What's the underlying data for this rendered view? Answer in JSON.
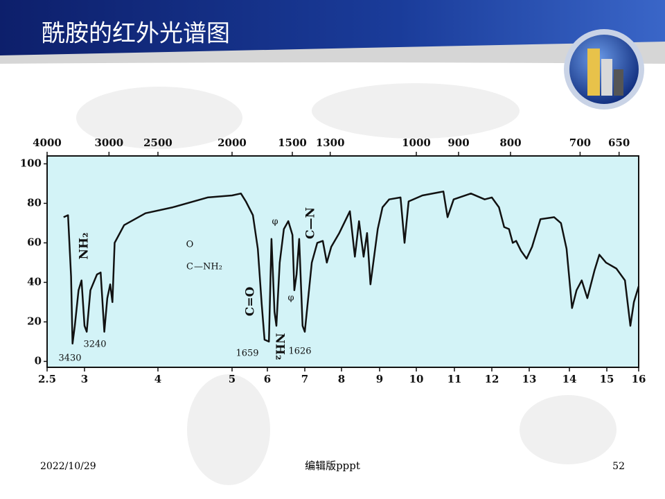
{
  "slide": {
    "title": "酰胺的红外光谱图",
    "date": "2022/10/29",
    "footer": "编辑版pppt",
    "page": "52"
  },
  "chart_data": {
    "type": "line",
    "x": [
      2.72,
      2.78,
      2.82,
      2.84,
      2.87,
      2.92,
      2.96,
      3.0,
      3.03,
      3.08,
      3.17,
      3.22,
      3.27,
      3.31,
      3.35,
      3.38,
      3.41,
      3.54,
      3.83,
      4.2,
      4.67,
      5.0,
      5.25,
      5.39,
      5.59,
      5.73,
      5.84,
      5.92,
      6.04,
      6.11,
      6.19,
      6.24,
      6.33,
      6.44,
      6.56,
      6.67,
      6.72,
      6.78,
      6.85,
      6.94,
      7.0,
      7.19,
      7.34,
      7.49,
      7.6,
      7.72,
      7.94,
      8.22,
      8.35,
      8.46,
      8.58,
      8.67,
      8.76,
      8.95,
      9.08,
      9.26,
      9.57,
      9.68,
      9.79,
      10.16,
      10.71,
      10.82,
      10.98,
      11.44,
      11.81,
      12.0,
      12.19,
      12.33,
      12.46,
      12.56,
      12.65,
      12.78,
      12.93,
      13.07,
      13.28,
      13.62,
      13.79,
      13.93,
      14.07,
      14.19,
      14.33,
      14.48,
      14.67,
      14.8,
      14.98,
      15.3,
      15.57,
      15.74,
      15.85,
      16.0
    ],
    "values": [
      73,
      74,
      43,
      9,
      18,
      36,
      41,
      18,
      15,
      36,
      44,
      45,
      15,
      32,
      39,
      30,
      60,
      69,
      75,
      78,
      83,
      84,
      85,
      81,
      74,
      57,
      29,
      11,
      10,
      62,
      25,
      18,
      50,
      67,
      71,
      64,
      36,
      44,
      62,
      18,
      15,
      50,
      60,
      61,
      50,
      58,
      65,
      76,
      53,
      71,
      53,
      65,
      39,
      67,
      78,
      82,
      83,
      60,
      81,
      84,
      86,
      73,
      82,
      85,
      82,
      83,
      78,
      68,
      67,
      60,
      61,
      56,
      52,
      58,
      72,
      73,
      70,
      57,
      27,
      36,
      41,
      32,
      46,
      54,
      50,
      47,
      41,
      18,
      30,
      38
    ],
    "color": "#111111",
    "xlim": [
      2.5,
      16
    ],
    "xticks": [
      2.5,
      3,
      4,
      5,
      6,
      7,
      8,
      9,
      10,
      11,
      12,
      13,
      14,
      15,
      16
    ],
    "x2ticks": [
      4000,
      3000,
      2500,
      2000,
      1500,
      1300,
      1000,
      900,
      800,
      700,
      650
    ],
    "ylim": [
      -3,
      104
    ],
    "yticks": [
      0,
      20,
      40,
      60,
      80,
      100
    ],
    "annotations": [
      "NH₂",
      "C=O",
      "NH₂",
      "φ",
      "φ",
      "C—N",
      "3430",
      "3240",
      "1659",
      "1626",
      "O",
      "C",
      "—NH₂"
    ]
  }
}
